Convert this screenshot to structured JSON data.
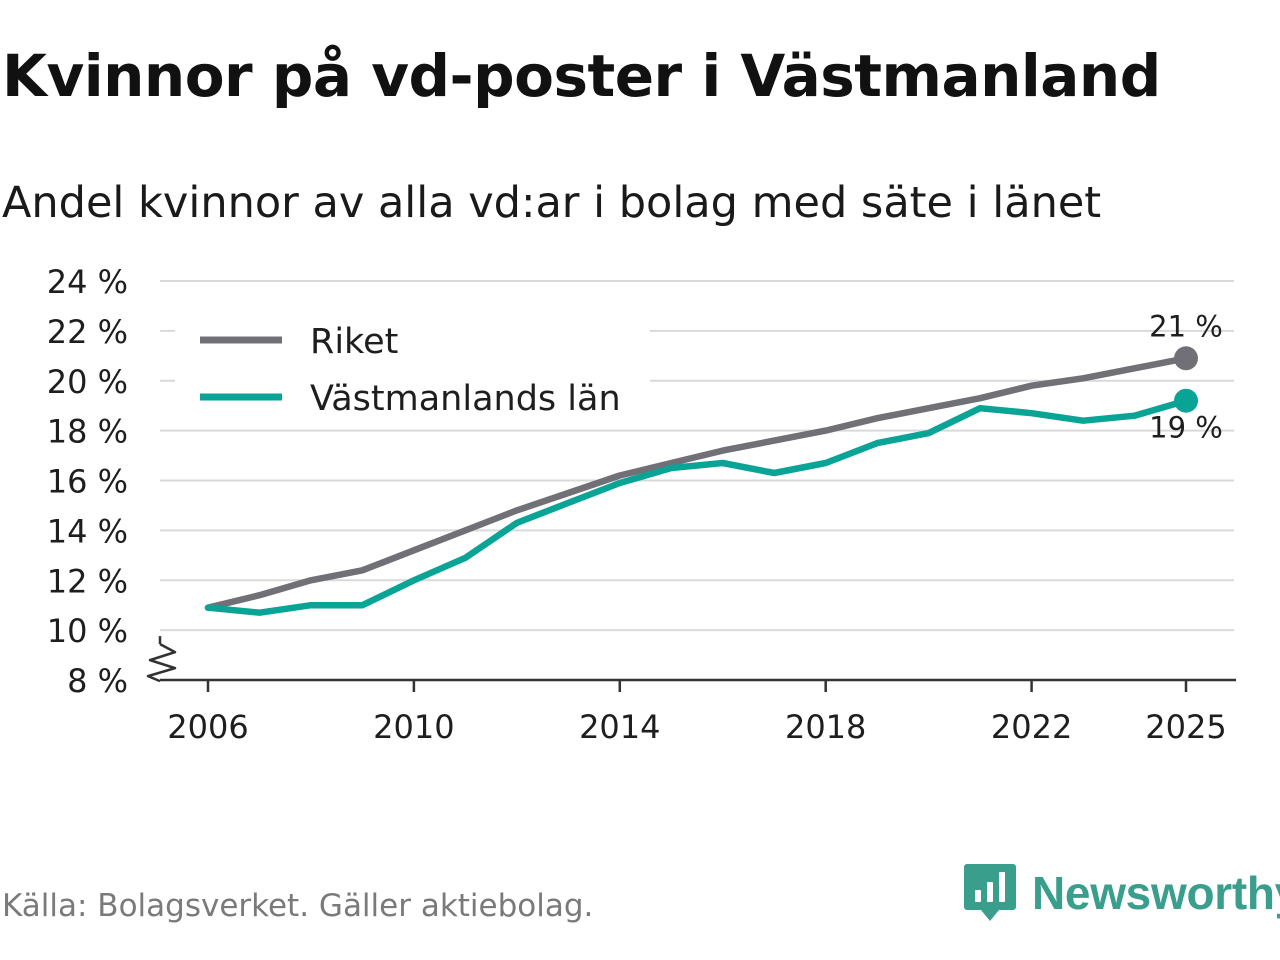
{
  "title": "Kvinnor på vd-poster i Västmanland",
  "subtitle": "Andel kvinnor av alla vd:ar i bolag med säte i länet",
  "source": "Källa: Bolagsverket. Gäller aktiebolag.",
  "brand": {
    "name": "Newsworthy",
    "color": "#3a9e8d"
  },
  "chart_data": {
    "type": "line",
    "title": "Kvinnor på vd-poster i Västmanland",
    "subtitle": "Andel kvinnor av alla vd:ar i bolag med säte i länet",
    "xlabel": "",
    "ylabel": "",
    "x": [
      2006,
      2007,
      2008,
      2009,
      2010,
      2011,
      2012,
      2013,
      2014,
      2015,
      2016,
      2017,
      2018,
      2019,
      2020,
      2021,
      2022,
      2023,
      2024,
      2025
    ],
    "xlim": [
      2006,
      2025
    ],
    "xticks": [
      2006,
      2010,
      2014,
      2018,
      2022,
      2025
    ],
    "xtick_labels": [
      "2006",
      "2010",
      "2014",
      "2018",
      "2022",
      "2025"
    ],
    "ylim": [
      8,
      24
    ],
    "yticks": [
      8,
      10,
      12,
      14,
      16,
      18,
      20,
      22,
      24
    ],
    "ytick_labels": [
      "8 %",
      "10 %",
      "12 %",
      "14 %",
      "16 %",
      "18 %",
      "20 %",
      "22 %",
      "24 %"
    ],
    "y_axis_break": true,
    "grid": true,
    "legend_position": "top-left",
    "series": [
      {
        "name": "Riket",
        "color": "#717076",
        "values": [
          10.9,
          11.4,
          12.0,
          12.4,
          13.2,
          14.0,
          14.8,
          15.5,
          16.2,
          16.7,
          17.2,
          17.6,
          18.0,
          18.5,
          18.9,
          19.3,
          19.8,
          20.1,
          20.5,
          20.9
        ],
        "end_label": "21 %"
      },
      {
        "name": "Västmanlands län",
        "color": "#0aa497",
        "values": [
          10.9,
          10.7,
          11.0,
          11.0,
          12.0,
          12.9,
          14.3,
          15.1,
          15.9,
          16.5,
          16.7,
          16.3,
          16.7,
          17.5,
          17.9,
          18.9,
          18.7,
          18.4,
          18.6,
          19.2
        ],
        "end_label": "19 %"
      }
    ]
  }
}
